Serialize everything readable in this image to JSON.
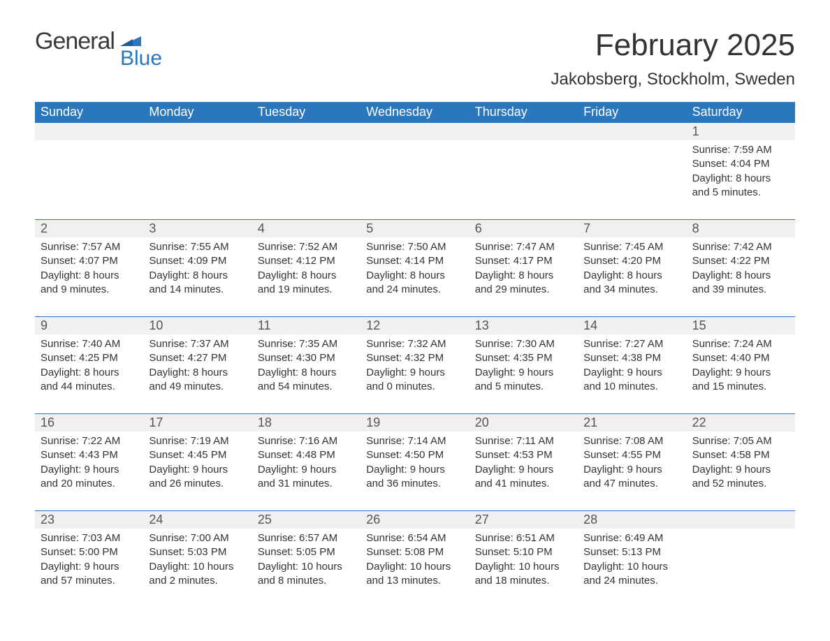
{
  "logo": {
    "word1": "General",
    "word2": "Blue"
  },
  "colors": {
    "header_bg": "#2a77bd",
    "header_fg": "#ffffff",
    "daynum_bg": "#f0f0f0",
    "rule": "#2a77bd",
    "text": "#333333",
    "logo_gray": "#3a3a3a",
    "logo_blue": "#2a77bd"
  },
  "title": "February 2025",
  "location": "Jakobsberg, Stockholm, Sweden",
  "day_names": [
    "Sunday",
    "Monday",
    "Tuesday",
    "Wednesday",
    "Thursday",
    "Friday",
    "Saturday"
  ],
  "weeks": [
    [
      null,
      null,
      null,
      null,
      null,
      null,
      {
        "n": "1",
        "sunrise": "7:59 AM",
        "sunset": "4:04 PM",
        "daylight": "8 hours and 5 minutes."
      }
    ],
    [
      {
        "n": "2",
        "sunrise": "7:57 AM",
        "sunset": "4:07 PM",
        "daylight": "8 hours and 9 minutes."
      },
      {
        "n": "3",
        "sunrise": "7:55 AM",
        "sunset": "4:09 PM",
        "daylight": "8 hours and 14 minutes."
      },
      {
        "n": "4",
        "sunrise": "7:52 AM",
        "sunset": "4:12 PM",
        "daylight": "8 hours and 19 minutes."
      },
      {
        "n": "5",
        "sunrise": "7:50 AM",
        "sunset": "4:14 PM",
        "daylight": "8 hours and 24 minutes."
      },
      {
        "n": "6",
        "sunrise": "7:47 AM",
        "sunset": "4:17 PM",
        "daylight": "8 hours and 29 minutes."
      },
      {
        "n": "7",
        "sunrise": "7:45 AM",
        "sunset": "4:20 PM",
        "daylight": "8 hours and 34 minutes."
      },
      {
        "n": "8",
        "sunrise": "7:42 AM",
        "sunset": "4:22 PM",
        "daylight": "8 hours and 39 minutes."
      }
    ],
    [
      {
        "n": "9",
        "sunrise": "7:40 AM",
        "sunset": "4:25 PM",
        "daylight": "8 hours and 44 minutes."
      },
      {
        "n": "10",
        "sunrise": "7:37 AM",
        "sunset": "4:27 PM",
        "daylight": "8 hours and 49 minutes."
      },
      {
        "n": "11",
        "sunrise": "7:35 AM",
        "sunset": "4:30 PM",
        "daylight": "8 hours and 54 minutes."
      },
      {
        "n": "12",
        "sunrise": "7:32 AM",
        "sunset": "4:32 PM",
        "daylight": "9 hours and 0 minutes."
      },
      {
        "n": "13",
        "sunrise": "7:30 AM",
        "sunset": "4:35 PM",
        "daylight": "9 hours and 5 minutes."
      },
      {
        "n": "14",
        "sunrise": "7:27 AM",
        "sunset": "4:38 PM",
        "daylight": "9 hours and 10 minutes."
      },
      {
        "n": "15",
        "sunrise": "7:24 AM",
        "sunset": "4:40 PM",
        "daylight": "9 hours and 15 minutes."
      }
    ],
    [
      {
        "n": "16",
        "sunrise": "7:22 AM",
        "sunset": "4:43 PM",
        "daylight": "9 hours and 20 minutes."
      },
      {
        "n": "17",
        "sunrise": "7:19 AM",
        "sunset": "4:45 PM",
        "daylight": "9 hours and 26 minutes."
      },
      {
        "n": "18",
        "sunrise": "7:16 AM",
        "sunset": "4:48 PM",
        "daylight": "9 hours and 31 minutes."
      },
      {
        "n": "19",
        "sunrise": "7:14 AM",
        "sunset": "4:50 PM",
        "daylight": "9 hours and 36 minutes."
      },
      {
        "n": "20",
        "sunrise": "7:11 AM",
        "sunset": "4:53 PM",
        "daylight": "9 hours and 41 minutes."
      },
      {
        "n": "21",
        "sunrise": "7:08 AM",
        "sunset": "4:55 PM",
        "daylight": "9 hours and 47 minutes."
      },
      {
        "n": "22",
        "sunrise": "7:05 AM",
        "sunset": "4:58 PM",
        "daylight": "9 hours and 52 minutes."
      }
    ],
    [
      {
        "n": "23",
        "sunrise": "7:03 AM",
        "sunset": "5:00 PM",
        "daylight": "9 hours and 57 minutes."
      },
      {
        "n": "24",
        "sunrise": "7:00 AM",
        "sunset": "5:03 PM",
        "daylight": "10 hours and 2 minutes."
      },
      {
        "n": "25",
        "sunrise": "6:57 AM",
        "sunset": "5:05 PM",
        "daylight": "10 hours and 8 minutes."
      },
      {
        "n": "26",
        "sunrise": "6:54 AM",
        "sunset": "5:08 PM",
        "daylight": "10 hours and 13 minutes."
      },
      {
        "n": "27",
        "sunrise": "6:51 AM",
        "sunset": "5:10 PM",
        "daylight": "10 hours and 18 minutes."
      },
      {
        "n": "28",
        "sunrise": "6:49 AM",
        "sunset": "5:13 PM",
        "daylight": "10 hours and 24 minutes."
      },
      null
    ]
  ],
  "labels": {
    "sunrise": "Sunrise: ",
    "sunset": "Sunset: ",
    "daylight": "Daylight: "
  }
}
